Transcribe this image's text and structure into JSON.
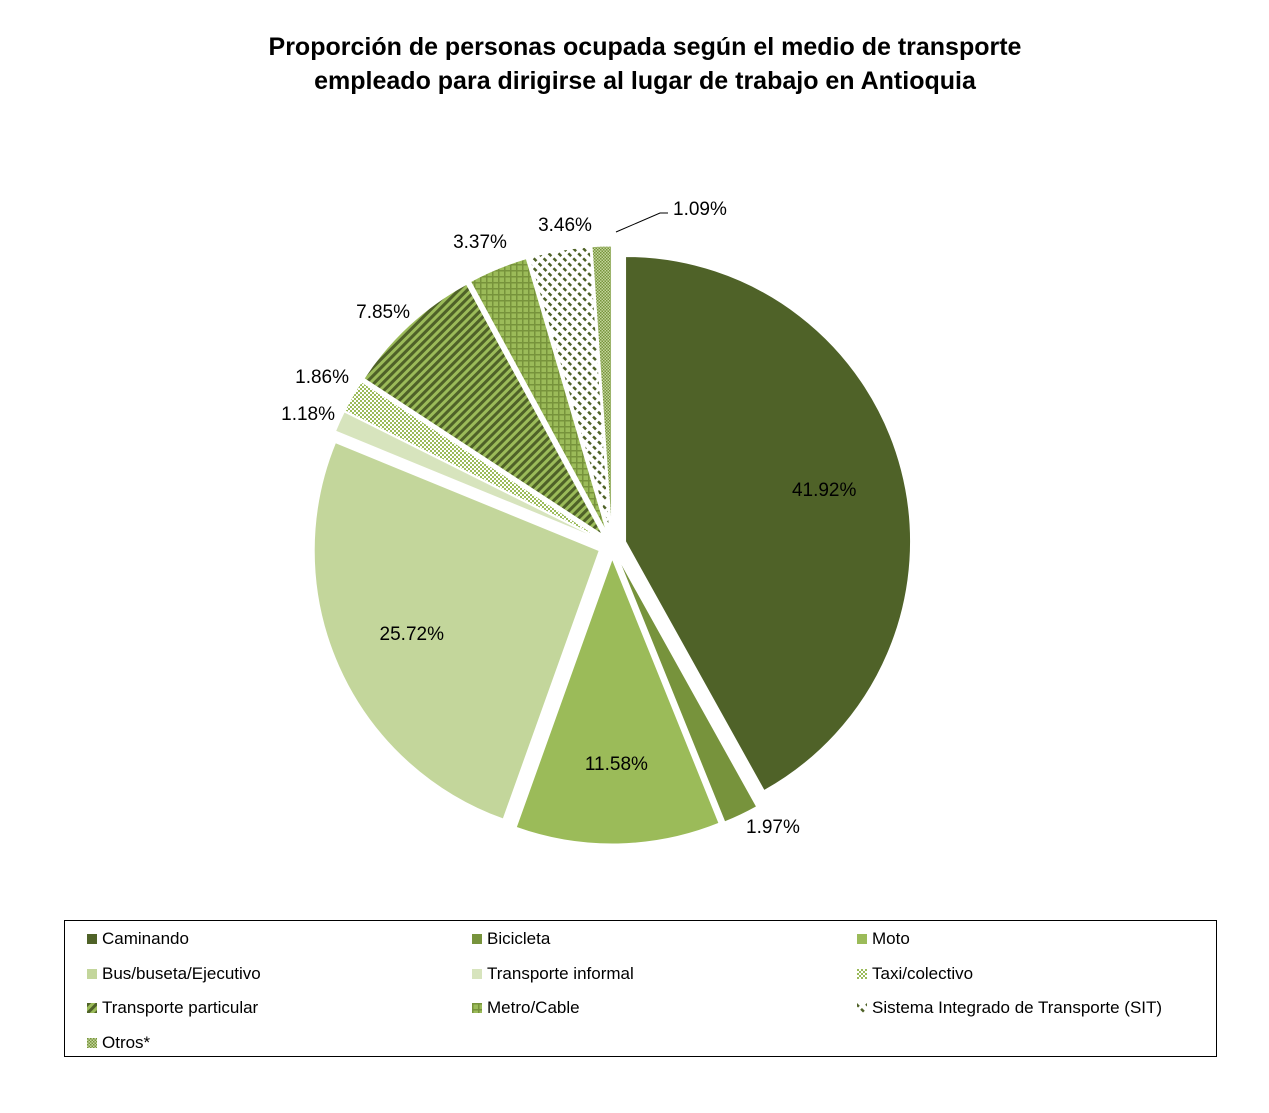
{
  "chart_data": {
    "type": "pie",
    "title_lines": [
      "Proporción de personas ocupada según el medio de transporte",
      "empleado para dirigirse al lugar de trabajo en Antioquia"
    ],
    "slices": [
      {
        "name": "Caminando",
        "value": 41.92,
        "label": "41.92%",
        "color": "#4f6228",
        "pattern": "solid"
      },
      {
        "name": "Bicicleta",
        "value": 1.97,
        "label": "1.97%",
        "color": "#77933c",
        "pattern": "solid"
      },
      {
        "name": "Moto",
        "value": 11.58,
        "label": "11.58%",
        "color": "#9bbb59",
        "pattern": "solid"
      },
      {
        "name": "Bus/buseta/Ejecutivo",
        "value": 25.72,
        "label": "25.72%",
        "color": "#c3d69b",
        "pattern": "solid"
      },
      {
        "name": "Transporte informal",
        "value": 1.18,
        "label": "1.18%",
        "color": "#d7e4bd",
        "pattern": "solid"
      },
      {
        "name": "Taxi/colectivo",
        "value": 1.86,
        "label": "1.86%",
        "color": "#9bbb59",
        "pattern": "dots"
      },
      {
        "name": "Transporte particular",
        "value": 7.85,
        "label": "7.85%",
        "color": "#77933c",
        "pattern": "diagonal-stripes"
      },
      {
        "name": "Metro/Cable",
        "value": 3.37,
        "label": "3.37%",
        "color": "#77933c",
        "pattern": "grid"
      },
      {
        "name": "Sistema Integrado de Transporte (SIT)",
        "value": 3.46,
        "label": "3.46%",
        "color": "#4f6228",
        "pattern": "dashed-diagonal"
      },
      {
        "name": "Otros*",
        "value": 1.09,
        "label": "1.09%",
        "color": "#77933c",
        "pattern": "fine-dots"
      }
    ],
    "legend_position": "bottom"
  }
}
